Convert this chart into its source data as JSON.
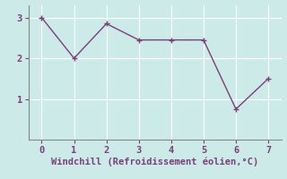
{
  "x": [
    0,
    1,
    2,
    3,
    4,
    5,
    6,
    7
  ],
  "y": [
    3.0,
    2.0,
    2.85,
    2.45,
    2.45,
    2.45,
    0.75,
    1.5
  ],
  "line_color": "#7b3f7b",
  "marker": "+",
  "marker_color": "#7b3f7b",
  "marker_size": 4,
  "xlabel": "Windchill (Refroidissement éolien,°C)",
  "xlabel_fontsize": 7.5,
  "background_color": "#cceae7",
  "grid_color": "#ffffff",
  "xlim": [
    -0.4,
    7.4
  ],
  "ylim": [
    0,
    3.3
  ],
  "xticks": [
    0,
    1,
    2,
    3,
    4,
    5,
    6,
    7
  ],
  "yticks": [
    1,
    2,
    3
  ],
  "tick_fontsize": 7.5,
  "line_width": 1.0
}
